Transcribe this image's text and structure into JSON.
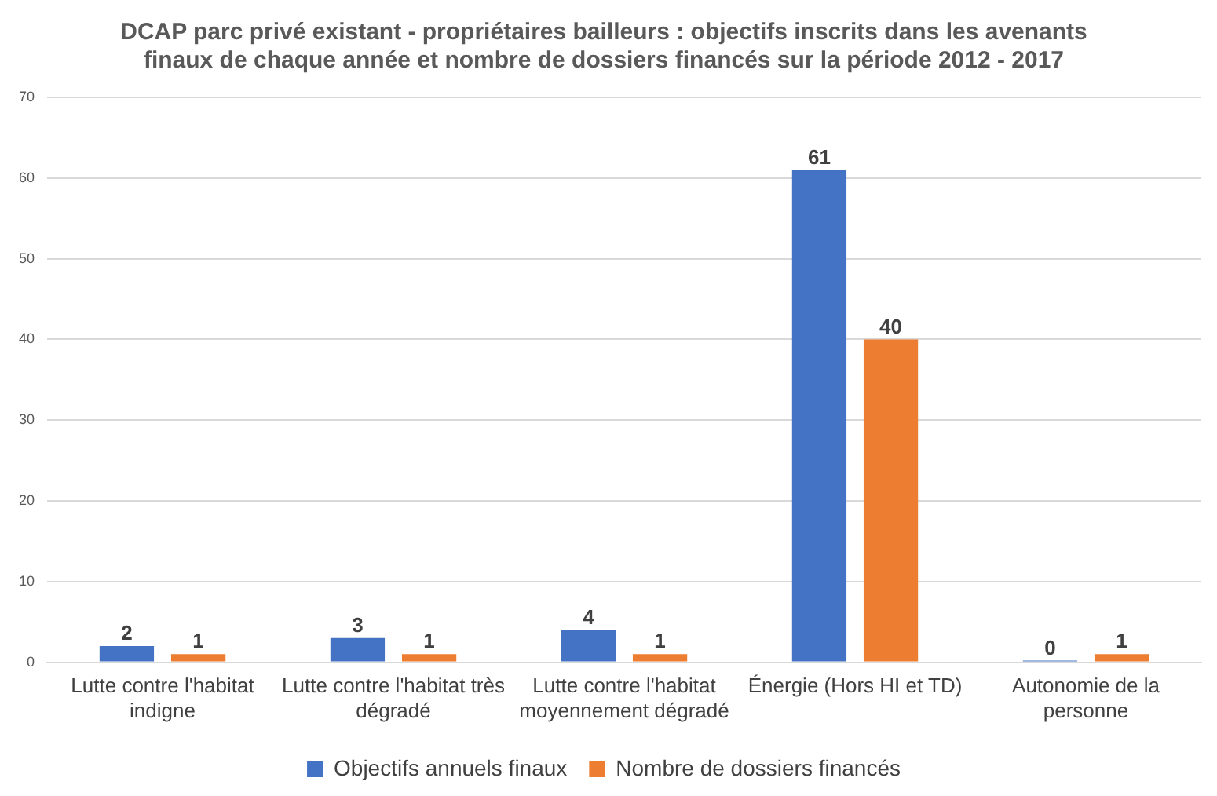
{
  "chart_data": {
    "type": "bar",
    "title": "DCAP parc privé existant - propriétaires bailleurs : objectifs inscrits dans les avenants finaux de chaque année et nombre de dossiers financés sur la période 2012 - 2017",
    "categories": [
      "Lutte contre l'habitat indigne",
      "Lutte contre l'habitat très dégradé",
      "Lutte contre l'habitat moyennement dégradé",
      "Énergie (Hors HI et TD)",
      "Autonomie de la personne"
    ],
    "series": [
      {
        "name": "Objectifs annuels finaux",
        "color": "#4472c4",
        "values": [
          2,
          3,
          4,
          61,
          0
        ]
      },
      {
        "name": "Nombre de dossiers financés",
        "color": "#ed7d31",
        "values": [
          1,
          1,
          1,
          40,
          1
        ]
      }
    ],
    "ylim": [
      0,
      70
    ],
    "yticks": [
      0,
      10,
      20,
      30,
      40,
      50,
      60,
      70
    ],
    "grid": "y",
    "legend": "bottom",
    "data_labels": true
  }
}
